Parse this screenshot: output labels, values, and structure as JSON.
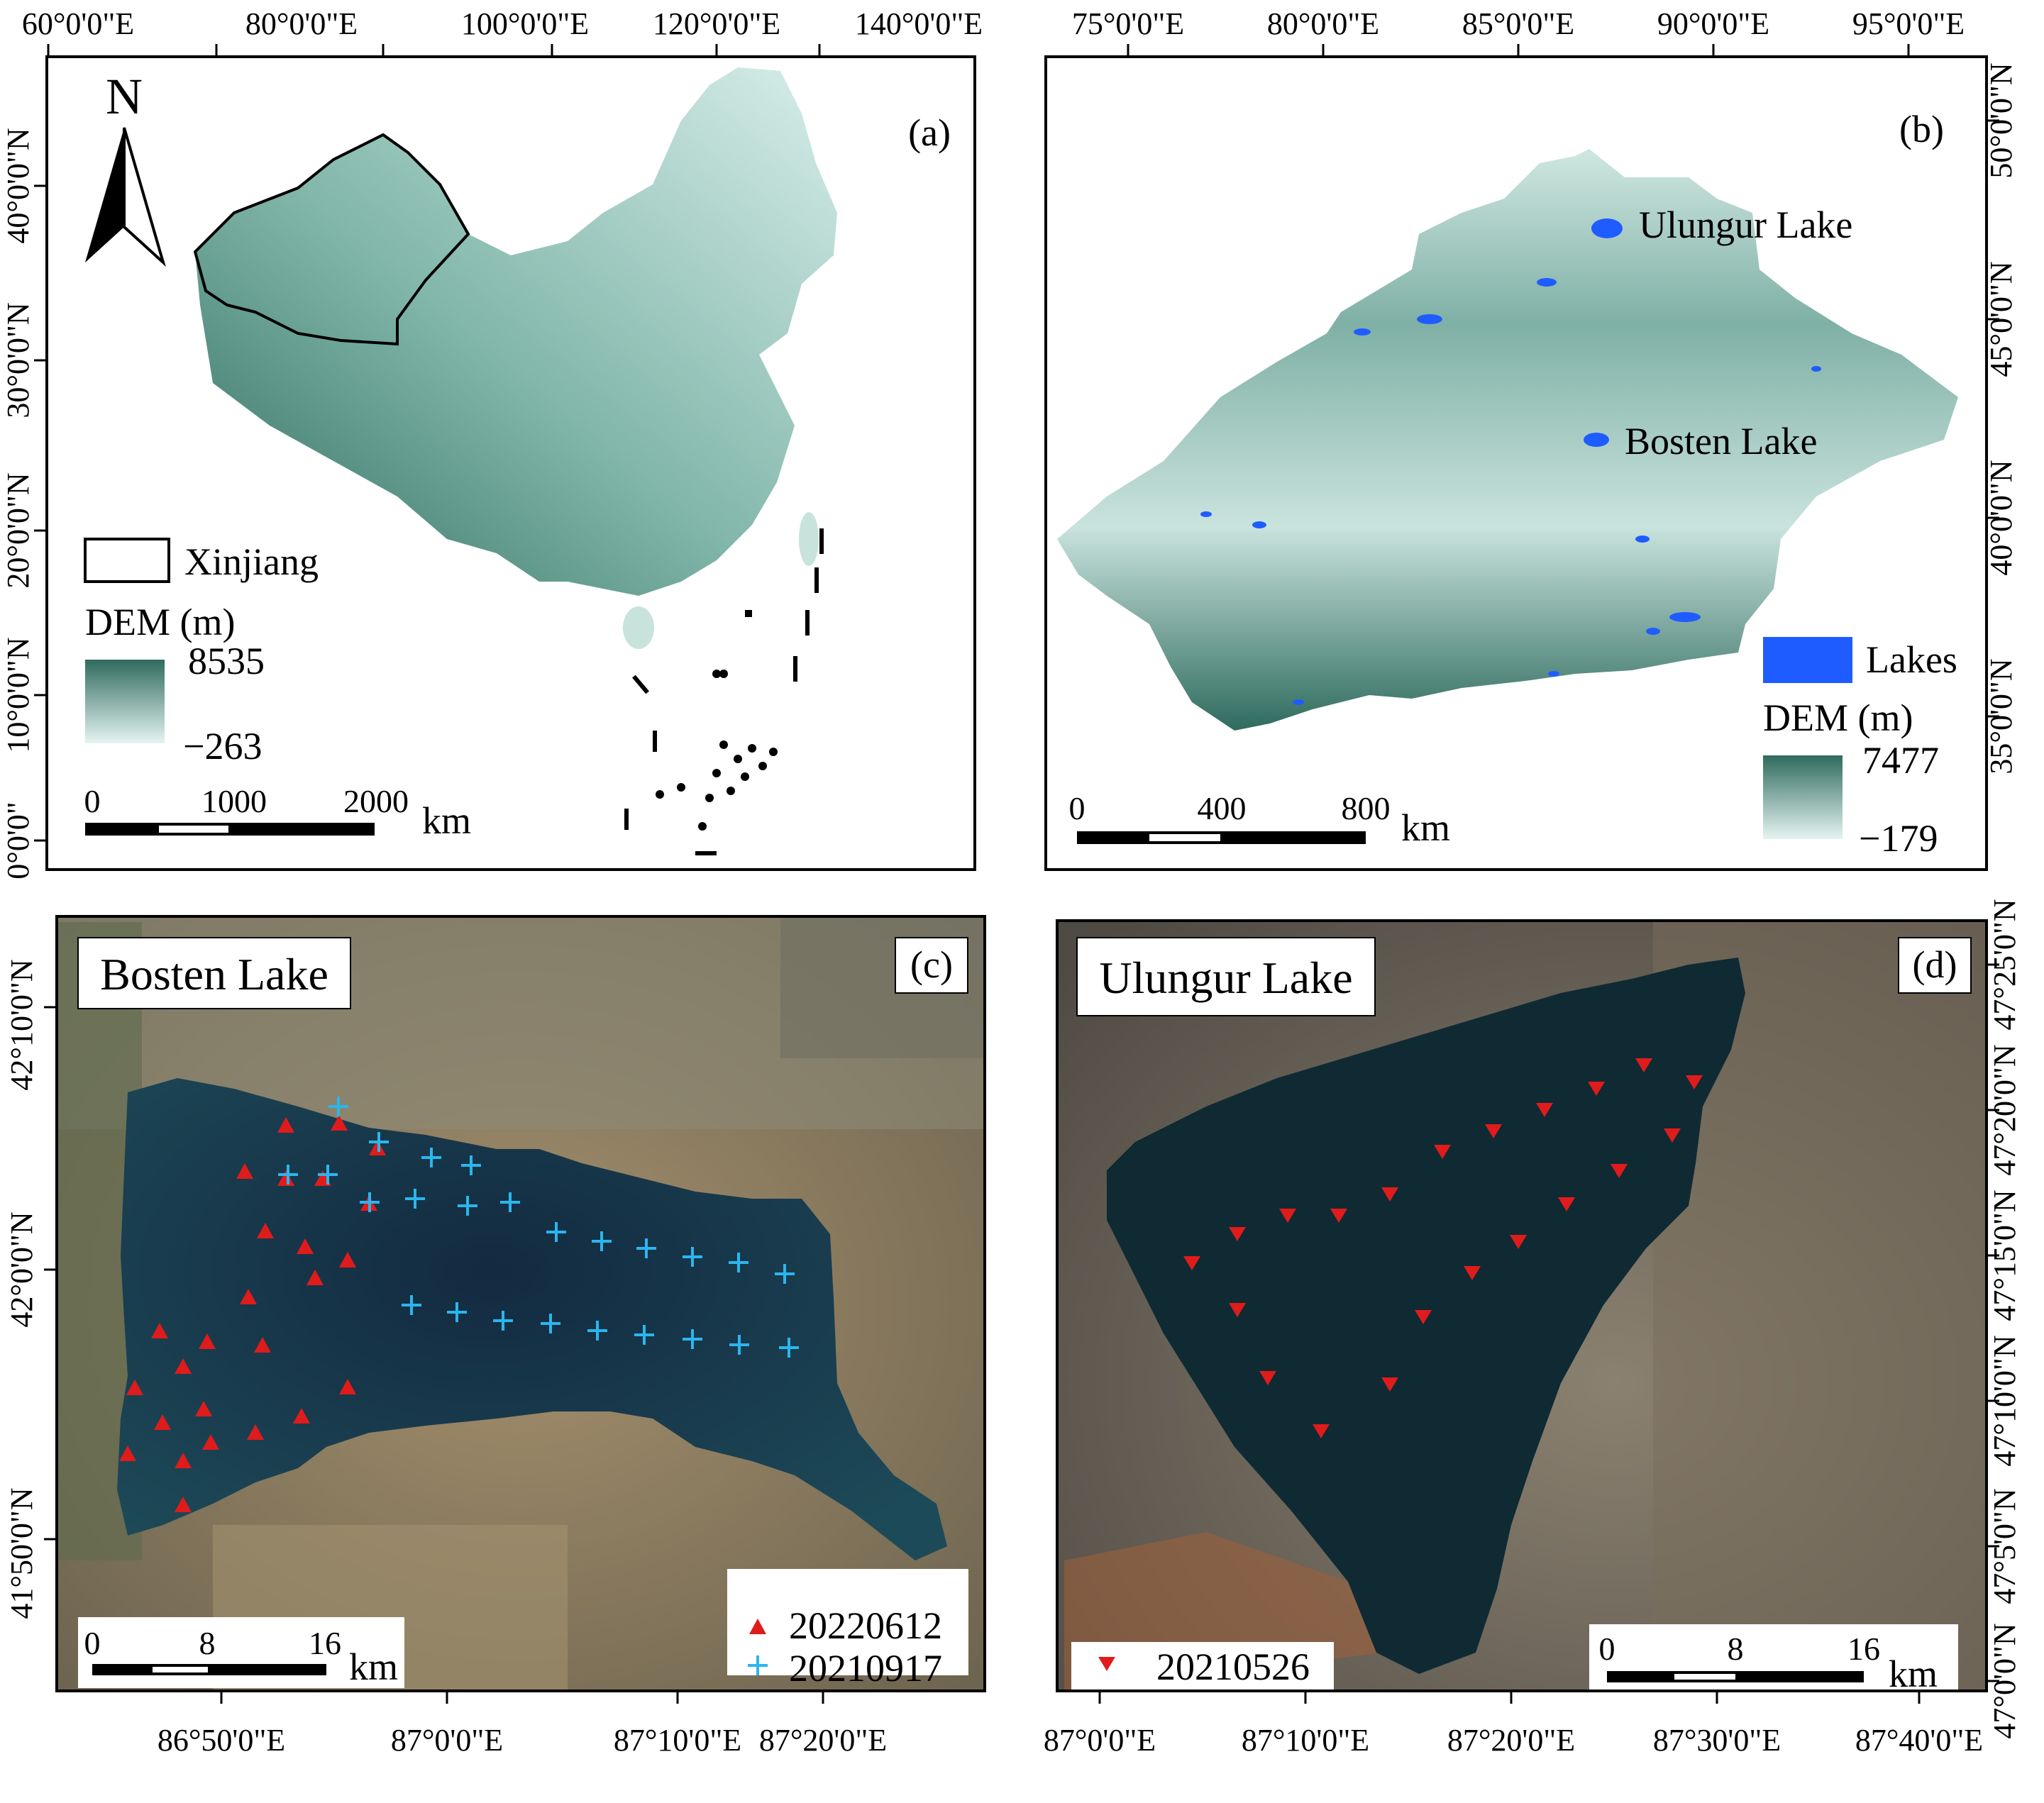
{
  "colors": {
    "dem_high": "#2f6b5e",
    "dem_low": "#e6f4f1",
    "lakes": "#1f5cff",
    "sat_water": "#0f2a33",
    "sat_land": "#8a7a60",
    "marker_red": "#e01b1b",
    "marker_cyan": "#2ab6ef"
  },
  "panel_a": {
    "tag": "(a)",
    "north": "N",
    "north_icon": "north-arrow-icon",
    "top_labels": [
      "60°0'0\"E",
      "80°0'0\"E",
      "100°0'0\"E",
      "120°0'0\"E",
      "140°0'0\"E"
    ],
    "left_labels": [
      "40°0'0\"N",
      "30°0'0\"N",
      "20°0'0\"N",
      "10°0'0\"N",
      "0°0'0\""
    ],
    "legend_xinjiang": "Xinjiang",
    "dem_title": "DEM (m)",
    "dem_max": "8535",
    "dem_min": "−263",
    "scale": [
      "0",
      "1000",
      "2000"
    ],
    "scale_unit": "km"
  },
  "panel_b": {
    "tag": "(b)",
    "top_labels": [
      "75°0'0\"E",
      "80°0'0\"E",
      "85°0'0\"E",
      "90°0'0\"E",
      "95°0'0\"E"
    ],
    "right_labels": [
      "50°0'0\"N",
      "45°0'0\"N",
      "40°0'0\"N",
      "35°0'0\"N"
    ],
    "label_ulungur": "Ulungur Lake",
    "label_bosten": "Bosten Lake",
    "legend_lakes": "Lakes",
    "dem_title": "DEM (m)",
    "dem_max": "7477",
    "dem_min": "−179",
    "scale": [
      "0",
      "400",
      "800"
    ],
    "scale_unit": "km"
  },
  "panel_c": {
    "tag": "(c)",
    "title": "Bosten Lake",
    "left_labels": [
      "42°10'0\"N",
      "42°0'0\"N",
      "41°50'0\"N"
    ],
    "bottom_labels": [
      "86°50'0\"E",
      "87°0'0\"E",
      "87°10'0\"E",
      "87°20'0\"E"
    ],
    "legend_red": "20220612",
    "legend_cyan": "20210917",
    "scale": [
      "0",
      "8",
      "16"
    ],
    "scale_unit": "km"
  },
  "panel_d": {
    "tag": "(d)",
    "title": "Ulungur Lake",
    "right_labels": [
      "47°25'0\"N",
      "47°20'0\"N",
      "47°15'0\"N",
      "47°10'0\"N",
      "47°5'0\"N",
      "47°0'0\"N"
    ],
    "bottom_labels": [
      "87°0'0\"E",
      "87°10'0\"E",
      "87°20'0\"E",
      "87°30'0\"E",
      "87°40'0\"E"
    ],
    "legend_red": "20210526",
    "scale": [
      "0",
      "8",
      "16"
    ],
    "scale_unit": "km"
  }
}
